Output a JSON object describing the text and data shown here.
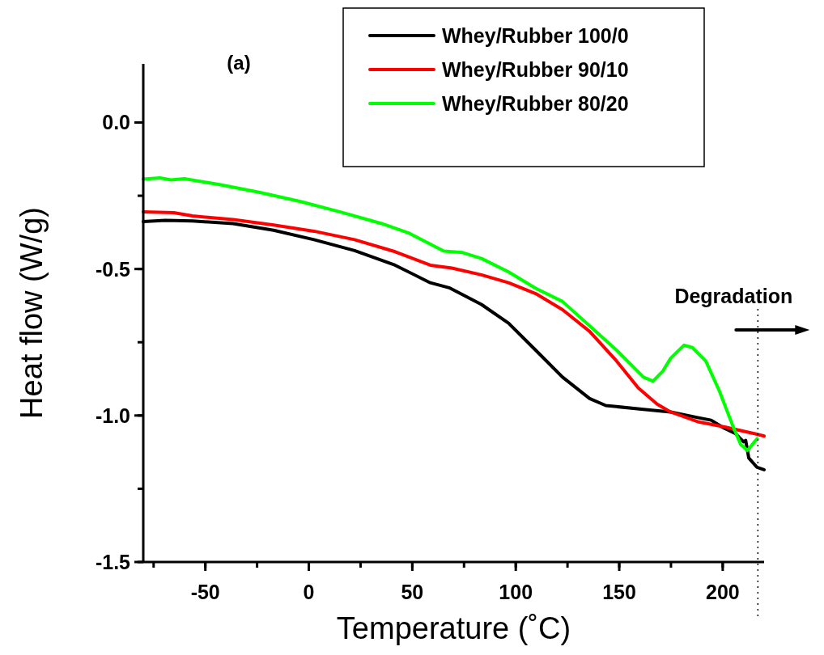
{
  "chart_data": {
    "type": "line",
    "xlabel": "Temperature (˚C)",
    "ylabel": "Heat flow (W/g)",
    "xlim": [
      -80,
      220
    ],
    "xticks": [
      {
        "value": -50,
        "label": "-50"
      },
      0,
      50,
      100,
      150,
      200
    ],
    "ylim": [
      -1.5,
      0.2
    ],
    "yticks": [
      {
        "value": -1.5,
        "label": "-1.5"
      },
      {
        "value": -1.0,
        "label": "-1.0"
      },
      {
        "value": -0.5,
        "label": "-0.5"
      },
      {
        "value": 0.0,
        "label": "0.0"
      }
    ],
    "legend": "top right",
    "grid": false,
    "line_style": "solid",
    "marker": "none",
    "annotations": [
      "(a)"
    ],
    "ref_lines": [
      {
        "axis": "x",
        "value": 217,
        "label": "Degradation",
        "line_style": "dotted",
        "color": "#000000"
      }
    ],
    "series": [
      {
        "name": "Whey/Rubber 100/0",
        "color": "#000000",
        "x": [
          -80,
          -69.3,
          -56.2,
          -36.6,
          -17,
          2.5,
          22.1,
          41.7,
          58.7,
          67.8,
          83.4,
          96.5,
          109.6,
          122.6,
          135.7,
          143.5,
          161.7,
          174.8,
          187.9,
          194.4,
          200.9,
          206.2,
          210.1,
          211.1,
          212.6,
          216.6,
          220
        ],
        "values": [
          -0.338,
          -0.334,
          -0.336,
          -0.345,
          -0.368,
          -0.4,
          -0.437,
          -0.487,
          -0.547,
          -0.564,
          -0.621,
          -0.685,
          -0.777,
          -0.869,
          -0.942,
          -0.966,
          -0.979,
          -0.988,
          -1.007,
          -1.016,
          -1.044,
          -1.062,
          -1.09,
          -1.085,
          -1.145,
          -1.177,
          -1.185
        ]
      },
      {
        "name": "Whey/Rubber 90/10",
        "color": "#ff0000",
        "x": [
          -80,
          -65.3,
          -56.2,
          -36.6,
          -17,
          2.5,
          22.1,
          41.7,
          58.7,
          69.1,
          83.4,
          96.5,
          109.6,
          122.6,
          135.7,
          148.7,
          159.2,
          168.3,
          174.8,
          187.9,
          200.9,
          216.6,
          220
        ],
        "values": [
          -0.305,
          -0.308,
          -0.319,
          -0.331,
          -0.35,
          -0.371,
          -0.4,
          -0.441,
          -0.487,
          -0.497,
          -0.52,
          -0.547,
          -0.584,
          -0.639,
          -0.713,
          -0.814,
          -0.906,
          -0.961,
          -0.988,
          -1.021,
          -1.039,
          -1.064,
          -1.07
        ]
      },
      {
        "name": "Whey/Rubber 80/20",
        "color": "#00ff00",
        "x": [
          -80,
          -71.9,
          -66.6,
          -60.1,
          -43.1,
          -23.6,
          -4,
          15.6,
          35.2,
          48.2,
          65.2,
          74.3,
          83.4,
          96.5,
          109.6,
          122.6,
          135.7,
          148.7,
          161.7,
          166.3,
          170.9,
          174.8,
          181.3,
          185.3,
          191.8,
          198.3,
          204.8,
          208.7,
          212,
          215.3,
          216.6
        ],
        "values": [
          -0.193,
          -0.189,
          -0.196,
          -0.192,
          -0.212,
          -0.239,
          -0.27,
          -0.306,
          -0.345,
          -0.377,
          -0.439,
          -0.444,
          -0.464,
          -0.51,
          -0.566,
          -0.611,
          -0.694,
          -0.777,
          -0.869,
          -0.883,
          -0.85,
          -0.805,
          -0.76,
          -0.768,
          -0.814,
          -0.915,
          -1.034,
          -1.099,
          -1.119,
          -1.09,
          -1.079
        ]
      }
    ]
  }
}
